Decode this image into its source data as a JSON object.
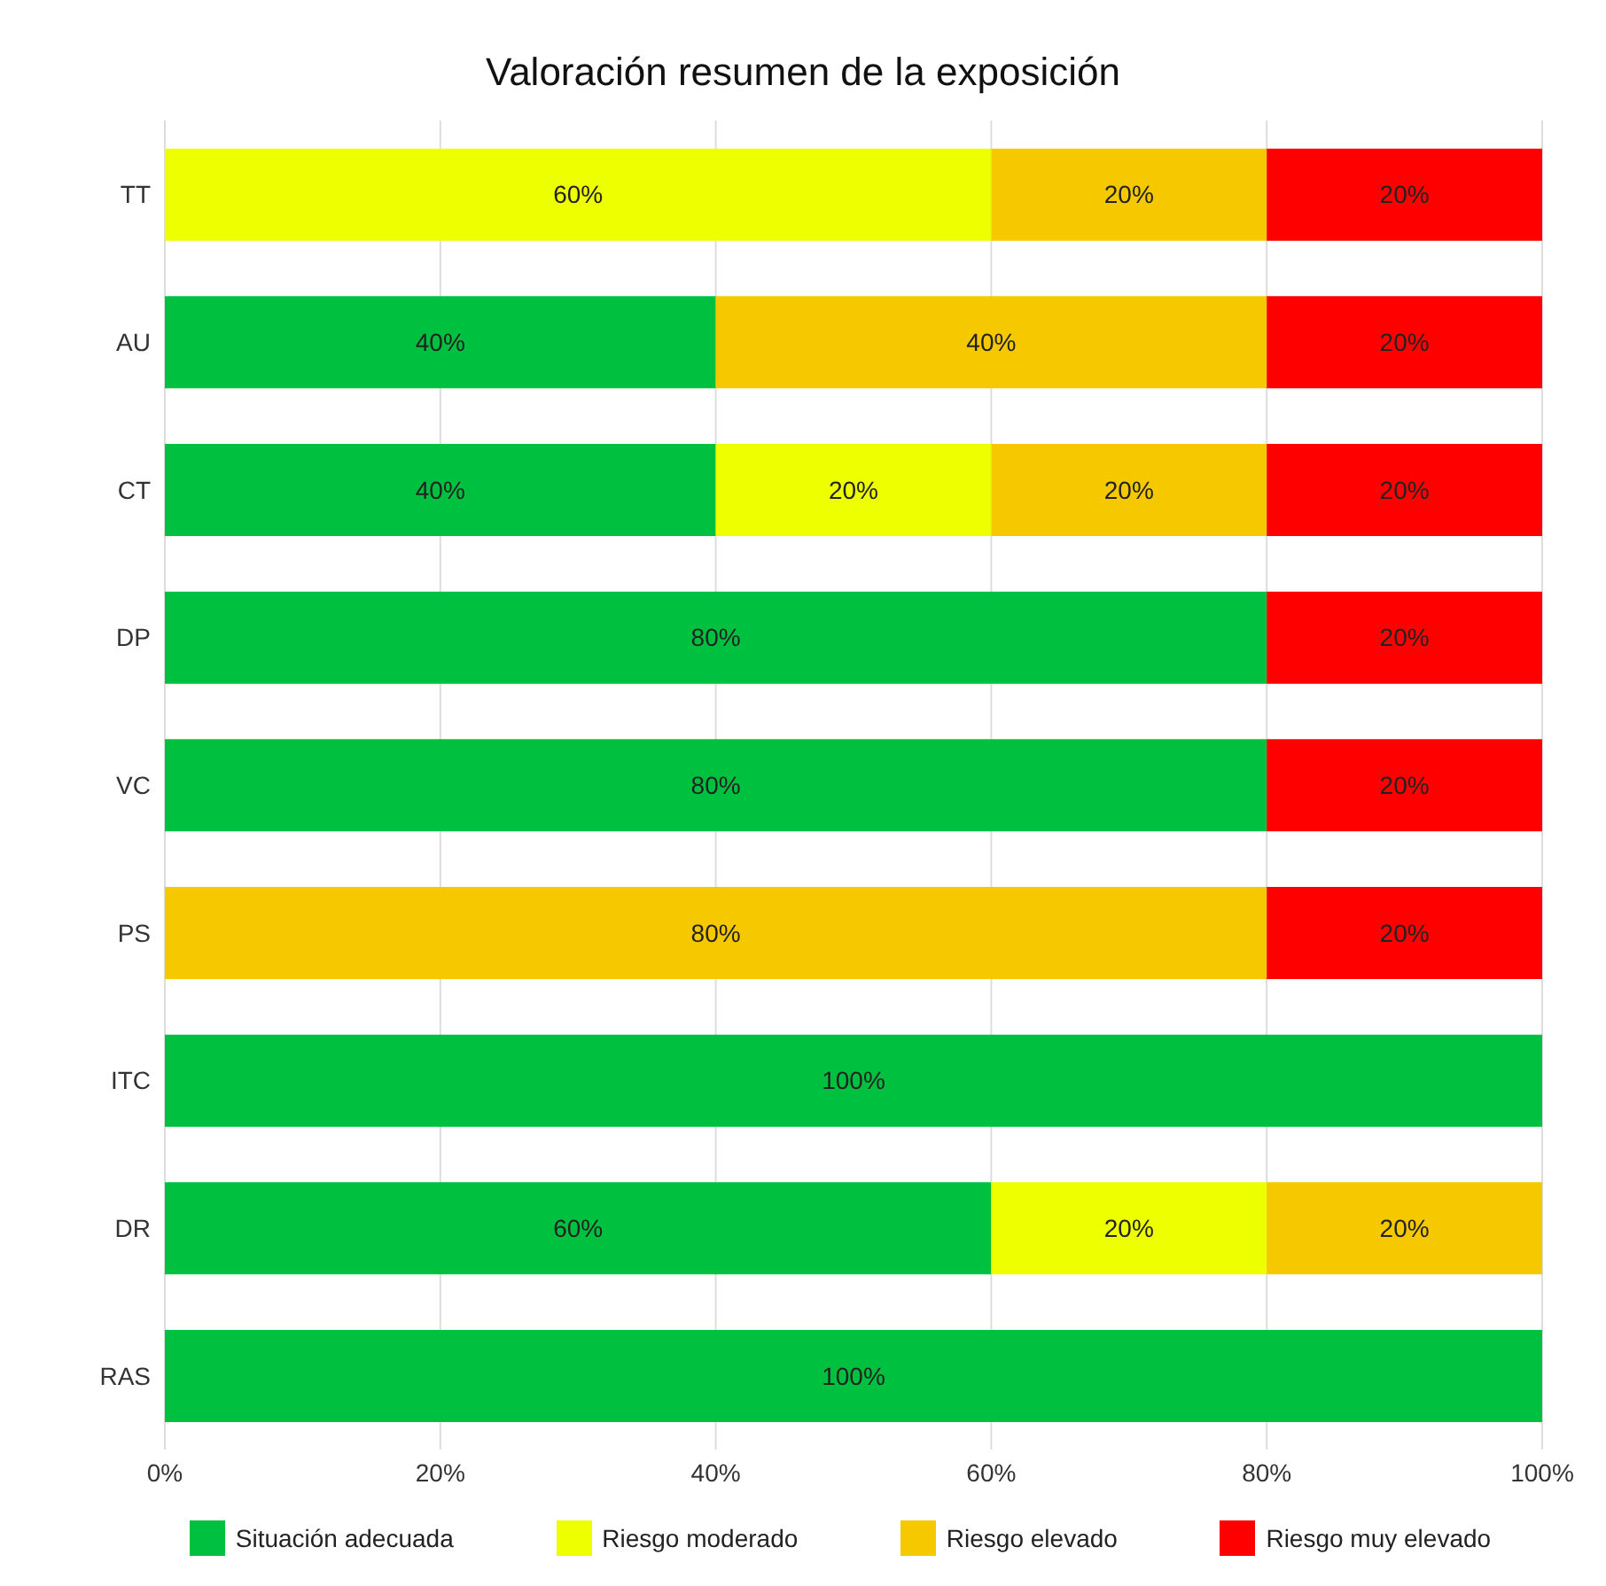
{
  "chart_data": {
    "type": "bar",
    "orientation": "horizontal",
    "stacked": true,
    "title": "Valoración resumen de la exposición",
    "categories": [
      "TT",
      "AU",
      "CT",
      "DP",
      "VC",
      "PS",
      "ITC",
      "DR",
      "RAS"
    ],
    "series": [
      {
        "name": "Situación adecuada",
        "color": "#00c040",
        "values": [
          null,
          40,
          40,
          80,
          80,
          null,
          100,
          60,
          100
        ],
        "value_labels": [
          null,
          "40%",
          "40%",
          "80%",
          "80%",
          null,
          "100%",
          "60%",
          "100%"
        ]
      },
      {
        "name": "Riesgo moderado",
        "color": "#eeff00",
        "values": [
          60,
          null,
          20,
          null,
          null,
          null,
          null,
          20,
          null
        ],
        "value_labels": [
          "60%",
          null,
          "20%",
          null,
          null,
          null,
          null,
          "20%",
          null
        ]
      },
      {
        "name": "Riesgo elevado",
        "color": "#f5c800",
        "values": [
          20,
          40,
          20,
          null,
          null,
          80,
          null,
          20,
          null
        ],
        "value_labels": [
          "20%",
          "40%",
          "20%",
          null,
          null,
          "80%",
          null,
          "20%",
          null
        ]
      },
      {
        "name": "Riesgo muy elevado",
        "color": "#ff0000",
        "values": [
          20,
          20,
          20,
          20,
          20,
          20,
          null,
          null,
          null
        ],
        "value_labels": [
          "20%",
          "20%",
          "20%",
          "20%",
          "20%",
          "20%",
          null,
          null,
          null
        ]
      }
    ],
    "xlim": [
      0,
      100
    ],
    "xticks": [
      {
        "value": 0,
        "label": "0%"
      },
      {
        "value": 20,
        "label": "20%"
      },
      {
        "value": 40,
        "label": "40%"
      },
      {
        "value": 60,
        "label": "60%"
      },
      {
        "value": 80,
        "label": "80%"
      },
      {
        "value": 100,
        "label": "100%"
      }
    ],
    "grid": "x",
    "legend": "bottom"
  }
}
